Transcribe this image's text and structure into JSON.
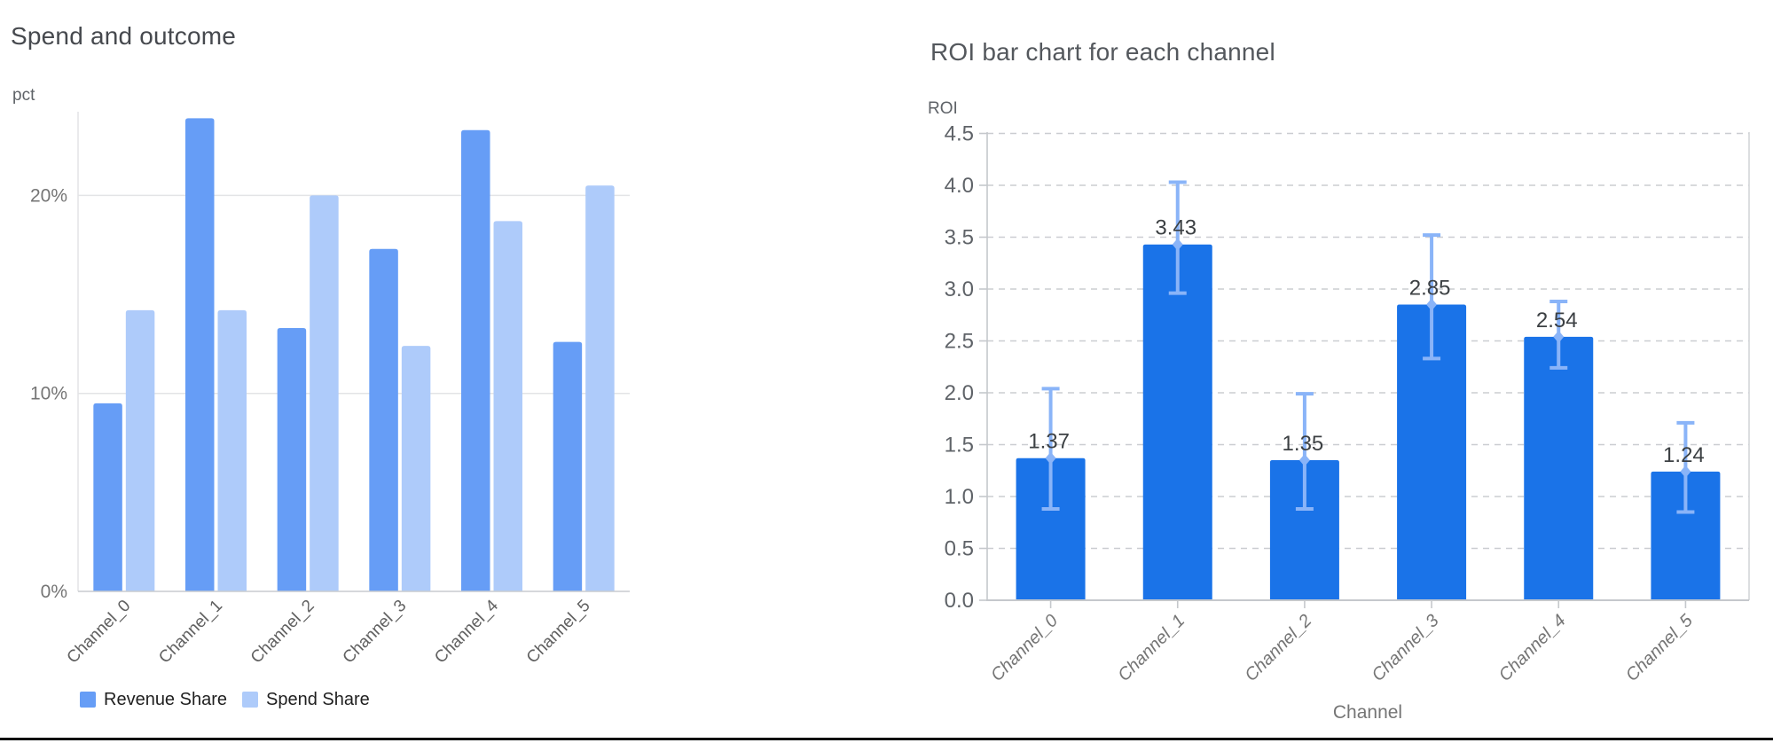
{
  "page": {
    "background": "#ffffff",
    "bottom_rule_color": "#0e0f10"
  },
  "chart_data": [
    {
      "type": "bar",
      "title": "Spend and outcome",
      "ylabel": "pct",
      "xlabel": "",
      "categories": [
        "Channel_0",
        "Channel_1",
        "Channel_2",
        "Channel_3",
        "Channel_4",
        "Channel_5"
      ],
      "series": [
        {
          "name": "Revenue Share",
          "color": "#669df6",
          "values": [
            9.5,
            23.9,
            13.3,
            17.3,
            23.3,
            12.6
          ]
        },
        {
          "name": "Spend Share",
          "color": "#aecbfa",
          "values": [
            14.2,
            14.2,
            20.0,
            12.4,
            18.7,
            20.5
          ]
        }
      ],
      "y_ticks": [
        {
          "value": 0,
          "label": "0%"
        },
        {
          "value": 10,
          "label": "10%"
        },
        {
          "value": 20,
          "label": "20%"
        }
      ],
      "ylim": [
        0,
        26
      ],
      "grid": "horizontal-solid",
      "legend_position": "bottom"
    },
    {
      "type": "bar",
      "title": "ROI bar chart for each channel",
      "ylabel": "ROI",
      "xlabel": "Channel",
      "categories": [
        "Channel_0",
        "Channel_1",
        "Channel_2",
        "Channel_3",
        "Channel_4",
        "Channel_5"
      ],
      "values": [
        1.37,
        3.43,
        1.35,
        2.85,
        2.54,
        1.24
      ],
      "bar_labels": [
        "1.37",
        "3.43",
        "1.35",
        "2.85",
        "2.54",
        "1.24"
      ],
      "error_low": [
        0.88,
        2.96,
        0.88,
        2.33,
        2.24,
        0.85
      ],
      "error_high": [
        2.04,
        4.03,
        1.99,
        3.52,
        2.88,
        1.71
      ],
      "bar_color": "#1a73e8",
      "error_bar_color": "#8ab4f8",
      "value_label_color": "#3c4043",
      "y_ticks": [
        {
          "value": 0.0,
          "label": "0.0"
        },
        {
          "value": 0.5,
          "label": "0.5"
        },
        {
          "value": 1.0,
          "label": "1.0"
        },
        {
          "value": 1.5,
          "label": "1.5"
        },
        {
          "value": 2.0,
          "label": "2.0"
        },
        {
          "value": 2.5,
          "label": "2.5"
        },
        {
          "value": 3.0,
          "label": "3.0"
        },
        {
          "value": 3.5,
          "label": "3.5"
        },
        {
          "value": 4.0,
          "label": "4.0"
        },
        {
          "value": 4.5,
          "label": "4.5"
        }
      ],
      "ylim": [
        0,
        4.5
      ],
      "grid": "horizontal-dashed",
      "legend_position": "none"
    }
  ]
}
